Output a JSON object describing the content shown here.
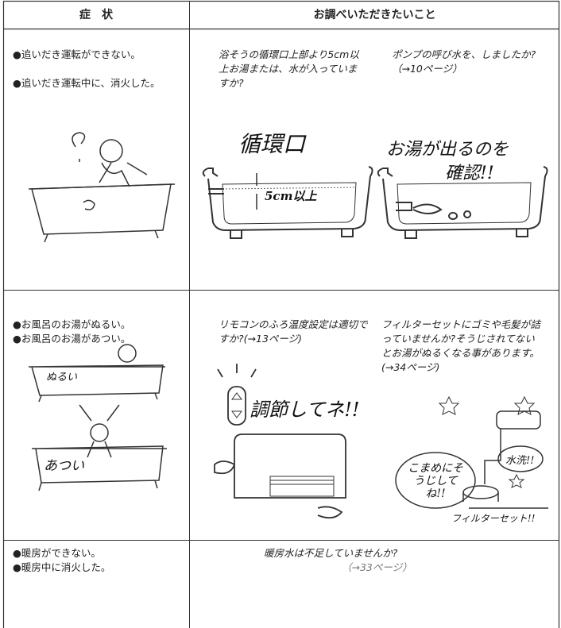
{
  "header": {
    "symptom": "症　状",
    "check": "お調べいただきたいこと"
  },
  "rows": [
    {
      "symptoms": [
        "●追いだき運転ができない。",
        "●追いだき運転中に、消火した。"
      ],
      "checks": [
        "浴そうの循環口上部より5cm以上お湯または、水が入っていますか?",
        "ポンプの呼び水を、しましたか?（→10ページ）"
      ],
      "labels": [
        "循環口",
        "5cm以上",
        "お湯が出るのを",
        "確認!!"
      ]
    },
    {
      "symptoms": [
        "●お風呂のお湯がぬるい。",
        "●お風呂のお湯があつい。"
      ],
      "checks": [
        "リモコンのふろ温度設定は適切ですか?(→13ページ)",
        "フィルターセットにゴミや毛髪が詰っていませんか?そうじされてないとお湯がぬるくなる事があります。(→34ページ)"
      ],
      "labels": [
        "ぬるい",
        "あつい",
        "調節してネ!!",
        "水洗!!",
        "こまめにそうじしてね!!",
        "フィルターセット!!"
      ]
    },
    {
      "symptoms": [
        "●暖房ができない。",
        "●暖房中に消火した。"
      ],
      "checks": [
        "暖房水は不足していませんか?",
        "（→33ページ）"
      ]
    }
  ]
}
